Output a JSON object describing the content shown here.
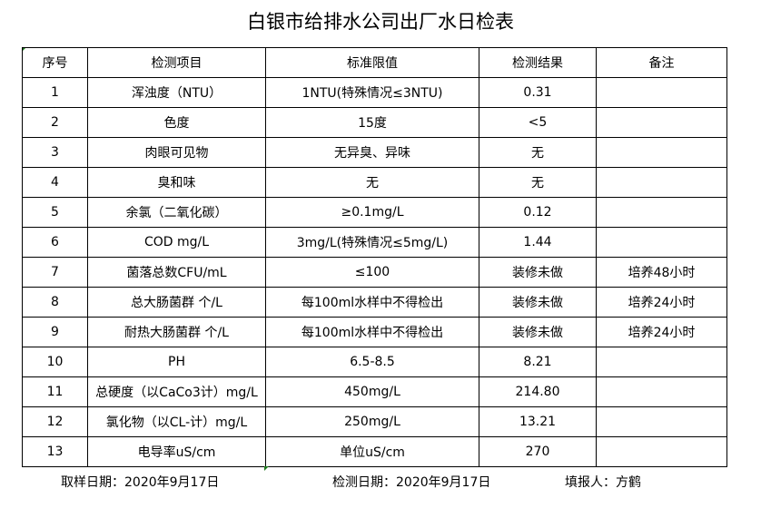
{
  "title": "白银市给排水公司出厂水日检表",
  "headers": [
    "序号",
    "检测项目",
    "标准限值",
    "检测结果",
    "备注"
  ],
  "rows": [
    [
      "1",
      "浑浊度（NTU）",
      "1NTU(特殊情况≤3NTU)",
      "0.31",
      ""
    ],
    [
      "2",
      "色度",
      "15度",
      "<5",
      ""
    ],
    [
      "3",
      "肉眼可见物",
      "无异臭、异味",
      "无",
      ""
    ],
    [
      "4",
      "臭和味",
      "无",
      "无",
      ""
    ],
    [
      "5",
      "余氯（二氧化碳）",
      "≥0.1mg/L",
      "0.12",
      ""
    ],
    [
      "6",
      "COD         mg/L",
      "3mg/L(特殊情况≤5mg/L)",
      "1.44",
      ""
    ],
    [
      "7",
      "菌落总数CFU/mL",
      "≤100",
      "装修未做",
      "培养48小时"
    ],
    [
      "8",
      "总大肠菌群 个/L",
      "每100ml水样中不得检出",
      "装修未做",
      "培养24小时"
    ],
    [
      "9",
      "耐热大肠菌群 个/L",
      "每100ml水样中不得检出",
      "装修未做",
      "培养24小时"
    ],
    [
      "10",
      "PH",
      "6.5-8.5",
      "8.21",
      ""
    ],
    [
      "11",
      "总硬度（以CaCo3计）mg/L",
      "450mg/L",
      "214.80",
      ""
    ],
    [
      "12",
      "氯化物（以CL-计）mg/L",
      "250mg/L",
      "13.21",
      ""
    ],
    [
      "13",
      "电导率uS/cm",
      "单位uS/cm",
      "270",
      ""
    ]
  ],
  "footer": {
    "sample_date": "取样日期：2020年9月17日",
    "test_date": "检测日期：2020年9月17日",
    "reporter": "填报人：方鹤"
  }
}
